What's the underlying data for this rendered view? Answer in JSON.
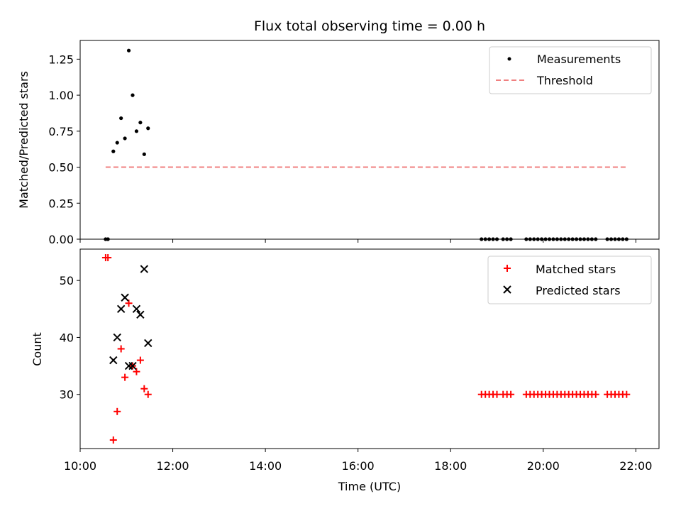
{
  "chart_data": [
    {
      "type": "scatter",
      "title": "Flux total observing time = 0.00 h",
      "xlabel": "",
      "ylabel": "Matched/Predicted stars",
      "xlim": [
        "10:00",
        "22:30"
      ],
      "ylim": [
        0.0,
        1.38
      ],
      "yticks": [
        "0.00",
        "0.25",
        "0.50",
        "0.75",
        "1.00",
        "1.25"
      ],
      "grid": false,
      "legend_position": "top-right",
      "colors": {
        "measurements": "#000000",
        "threshold": "#f08080"
      },
      "series": [
        {
          "name": "Measurements",
          "marker": "dot",
          "points": [
            {
              "x": "10:33",
              "y": 0.0
            },
            {
              "x": "10:36",
              "y": 0.0
            },
            {
              "x": "10:43",
              "y": 0.61
            },
            {
              "x": "10:48",
              "y": 0.67
            },
            {
              "x": "10:53",
              "y": 0.84
            },
            {
              "x": "10:58",
              "y": 0.7
            },
            {
              "x": "11:03",
              "y": 1.31
            },
            {
              "x": "11:08",
              "y": 1.0
            },
            {
              "x": "11:13",
              "y": 0.75
            },
            {
              "x": "11:18",
              "y": 0.81
            },
            {
              "x": "11:23",
              "y": 0.59
            },
            {
              "x": "11:28",
              "y": 0.77
            },
            {
              "x": "18:40",
              "y": 0.0
            },
            {
              "x": "18:45",
              "y": 0.0
            },
            {
              "x": "18:50",
              "y": 0.0
            },
            {
              "x": "18:55",
              "y": 0.0
            },
            {
              "x": "19:00",
              "y": 0.0
            },
            {
              "x": "19:08",
              "y": 0.0
            },
            {
              "x": "19:13",
              "y": 0.0
            },
            {
              "x": "19:18",
              "y": 0.0
            },
            {
              "x": "19:38",
              "y": 0.0
            },
            {
              "x": "19:43",
              "y": 0.0
            },
            {
              "x": "19:48",
              "y": 0.0
            },
            {
              "x": "19:53",
              "y": 0.0
            },
            {
              "x": "19:58",
              "y": 0.0
            },
            {
              "x": "20:03",
              "y": 0.0
            },
            {
              "x": "20:08",
              "y": 0.0
            },
            {
              "x": "20:13",
              "y": 0.0
            },
            {
              "x": "20:18",
              "y": 0.0
            },
            {
              "x": "20:23",
              "y": 0.0
            },
            {
              "x": "20:28",
              "y": 0.0
            },
            {
              "x": "20:33",
              "y": 0.0
            },
            {
              "x": "20:38",
              "y": 0.0
            },
            {
              "x": "20:43",
              "y": 0.0
            },
            {
              "x": "20:48",
              "y": 0.0
            },
            {
              "x": "20:53",
              "y": 0.0
            },
            {
              "x": "20:58",
              "y": 0.0
            },
            {
              "x": "21:03",
              "y": 0.0
            },
            {
              "x": "21:08",
              "y": 0.0
            },
            {
              "x": "21:23",
              "y": 0.0
            },
            {
              "x": "21:28",
              "y": 0.0
            },
            {
              "x": "21:33",
              "y": 0.0
            },
            {
              "x": "21:38",
              "y": 0.0
            },
            {
              "x": "21:43",
              "y": 0.0
            },
            {
              "x": "21:48",
              "y": 0.0
            }
          ]
        },
        {
          "name": "Threshold",
          "style": "dashed-line",
          "points": [
            {
              "x": "10:33",
              "y": 0.5
            },
            {
              "x": "21:48",
              "y": 0.5
            }
          ]
        }
      ]
    },
    {
      "type": "scatter",
      "title": "",
      "xlabel": "Time (UTC)",
      "ylabel": "Count",
      "xlim": [
        "10:00",
        "22:30"
      ],
      "ylim": [
        20.5,
        55.5
      ],
      "yticks": [
        "30",
        "40",
        "50"
      ],
      "xticks": [
        "10:00",
        "12:00",
        "14:00",
        "16:00",
        "18:00",
        "20:00",
        "22:00"
      ],
      "grid": false,
      "legend_position": "top-right",
      "colors": {
        "matched": "#ff0000",
        "predicted": "#000000"
      },
      "series": [
        {
          "name": "Matched stars",
          "marker": "plus",
          "points": [
            {
              "x": "10:33",
              "y": 54
            },
            {
              "x": "10:36",
              "y": 54
            },
            {
              "x": "10:43",
              "y": 22
            },
            {
              "x": "10:48",
              "y": 27
            },
            {
              "x": "10:53",
              "y": 38
            },
            {
              "x": "10:58",
              "y": 33
            },
            {
              "x": "11:03",
              "y": 46
            },
            {
              "x": "11:08",
              "y": 35
            },
            {
              "x": "11:13",
              "y": 34
            },
            {
              "x": "11:18",
              "y": 36
            },
            {
              "x": "11:23",
              "y": 31
            },
            {
              "x": "11:28",
              "y": 30
            },
            {
              "x": "18:40",
              "y": 30
            },
            {
              "x": "18:45",
              "y": 30
            },
            {
              "x": "18:50",
              "y": 30
            },
            {
              "x": "18:55",
              "y": 30
            },
            {
              "x": "19:00",
              "y": 30
            },
            {
              "x": "19:08",
              "y": 30
            },
            {
              "x": "19:13",
              "y": 30
            },
            {
              "x": "19:18",
              "y": 30
            },
            {
              "x": "19:38",
              "y": 30
            },
            {
              "x": "19:43",
              "y": 30
            },
            {
              "x": "19:48",
              "y": 30
            },
            {
              "x": "19:53",
              "y": 30
            },
            {
              "x": "19:58",
              "y": 30
            },
            {
              "x": "20:03",
              "y": 30
            },
            {
              "x": "20:08",
              "y": 30
            },
            {
              "x": "20:13",
              "y": 30
            },
            {
              "x": "20:18",
              "y": 30
            },
            {
              "x": "20:23",
              "y": 30
            },
            {
              "x": "20:28",
              "y": 30
            },
            {
              "x": "20:33",
              "y": 30
            },
            {
              "x": "20:38",
              "y": 30
            },
            {
              "x": "20:43",
              "y": 30
            },
            {
              "x": "20:48",
              "y": 30
            },
            {
              "x": "20:53",
              "y": 30
            },
            {
              "x": "20:58",
              "y": 30
            },
            {
              "x": "21:03",
              "y": 30
            },
            {
              "x": "21:08",
              "y": 30
            },
            {
              "x": "21:23",
              "y": 30
            },
            {
              "x": "21:28",
              "y": 30
            },
            {
              "x": "21:33",
              "y": 30
            },
            {
              "x": "21:38",
              "y": 30
            },
            {
              "x": "21:43",
              "y": 30
            },
            {
              "x": "21:48",
              "y": 30
            }
          ]
        },
        {
          "name": "Predicted stars",
          "marker": "x",
          "points": [
            {
              "x": "10:43",
              "y": 36
            },
            {
              "x": "10:48",
              "y": 40
            },
            {
              "x": "10:53",
              "y": 45
            },
            {
              "x": "10:58",
              "y": 47
            },
            {
              "x": "11:03",
              "y": 35
            },
            {
              "x": "11:08",
              "y": 35
            },
            {
              "x": "11:13",
              "y": 45
            },
            {
              "x": "11:18",
              "y": 44
            },
            {
              "x": "11:23",
              "y": 52
            },
            {
              "x": "11:28",
              "y": 39
            }
          ]
        }
      ]
    }
  ]
}
